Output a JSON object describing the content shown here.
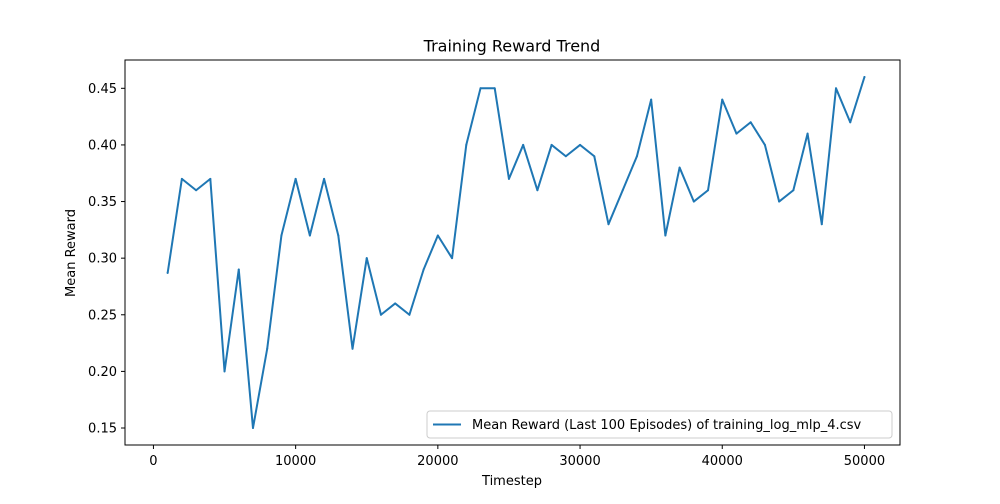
{
  "chart_data": {
    "type": "line",
    "title": "Training Reward Trend",
    "xlabel": "Timestep",
    "ylabel": "Mean Reward",
    "xlim": [
      -2000,
      52500
    ],
    "ylim": [
      0.135,
      0.475
    ],
    "xticks": [
      0,
      10000,
      20000,
      30000,
      40000,
      50000
    ],
    "yticks": [
      0.15,
      0.2,
      0.25,
      0.3,
      0.35,
      0.4,
      0.45
    ],
    "xtick_labels": [
      "0",
      "10000",
      "20000",
      "30000",
      "40000",
      "50000"
    ],
    "ytick_labels": [
      "0.15",
      "0.20",
      "0.25",
      "0.30",
      "0.35",
      "0.40",
      "0.45"
    ],
    "grid": false,
    "legend": {
      "placement": "lower-right"
    },
    "series": [
      {
        "name": "Mean Reward (Last 100 Episodes) of training_log_mlp_4.csv",
        "color": "#1f77b4",
        "x": [
          1000,
          2000,
          3000,
          4000,
          5000,
          6000,
          7000,
          8000,
          9000,
          10000,
          11000,
          12000,
          13000,
          14000,
          15000,
          16000,
          17000,
          18000,
          19000,
          20000,
          21000,
          22000,
          23000,
          24000,
          25000,
          26000,
          27000,
          28000,
          29000,
          30000,
          31000,
          32000,
          33000,
          34000,
          35000,
          36000,
          37000,
          38000,
          39000,
          40000,
          41000,
          42000,
          43000,
          44000,
          45000,
          46000,
          47000,
          48000,
          49000,
          50000
        ],
        "y": [
          0.287,
          0.37,
          0.36,
          0.37,
          0.2,
          0.29,
          0.15,
          0.22,
          0.32,
          0.37,
          0.32,
          0.37,
          0.32,
          0.22,
          0.3,
          0.25,
          0.26,
          0.25,
          0.29,
          0.32,
          0.3,
          0.4,
          0.45,
          0.45,
          0.37,
          0.4,
          0.36,
          0.4,
          0.39,
          0.4,
          0.39,
          0.33,
          0.36,
          0.39,
          0.44,
          0.32,
          0.38,
          0.35,
          0.36,
          0.44,
          0.41,
          0.42,
          0.4,
          0.35,
          0.36,
          0.41,
          0.33,
          0.45,
          0.42,
          0.46
        ]
      }
    ]
  }
}
